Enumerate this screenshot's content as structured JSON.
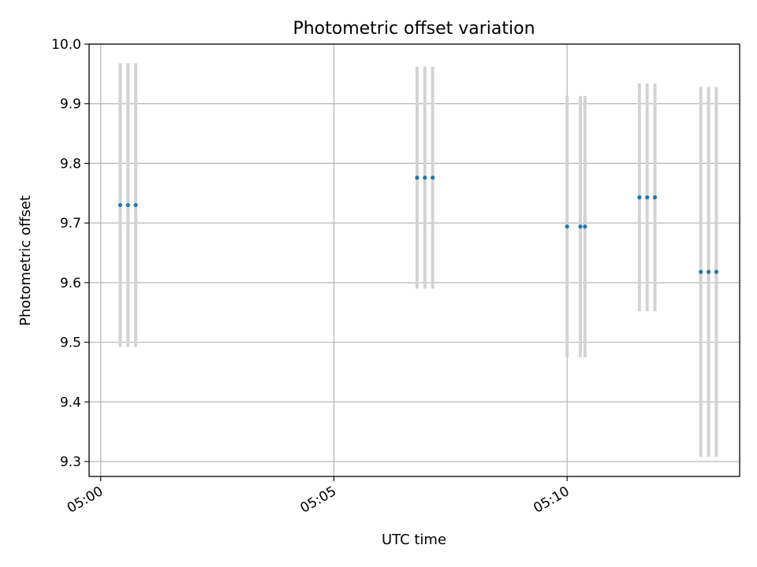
{
  "chart_data": {
    "type": "scatter",
    "title": "Photometric offset variation",
    "xlabel": "UTC time",
    "ylabel": "Photometric offset",
    "xlim": [
      "04:59:45",
      "05:13:42"
    ],
    "ylim": [
      9.275,
      10.0
    ],
    "yticks": [
      9.3,
      9.4,
      9.5,
      9.6,
      9.7,
      9.8,
      9.9,
      10.0
    ],
    "xticks": [
      "05:00",
      "05:05",
      "05:10"
    ],
    "grid": true,
    "colors": {
      "points": "#1f77b4",
      "errorbars": "#d3d3d3",
      "grid": "#b0b0b0"
    },
    "points": [
      {
        "t": "05:00:25",
        "y": 9.73,
        "lo": 9.492,
        "hi": 9.968
      },
      {
        "t": "05:00:35",
        "y": 9.73,
        "lo": 9.492,
        "hi": 9.968
      },
      {
        "t": "05:00:45",
        "y": 9.73,
        "lo": 9.492,
        "hi": 9.968
      },
      {
        "t": "05:06:47",
        "y": 9.776,
        "lo": 9.59,
        "hi": 9.962
      },
      {
        "t": "05:06:57",
        "y": 9.776,
        "lo": 9.59,
        "hi": 9.962
      },
      {
        "t": "05:07:07",
        "y": 9.776,
        "lo": 9.59,
        "hi": 9.962
      },
      {
        "t": "05:10:00",
        "y": 9.694,
        "lo": 9.475,
        "hi": 9.913
      },
      {
        "t": "05:10:17",
        "y": 9.694,
        "lo": 9.475,
        "hi": 9.913
      },
      {
        "t": "05:10:23",
        "y": 9.694,
        "lo": 9.475,
        "hi": 9.913
      },
      {
        "t": "05:11:33",
        "y": 9.743,
        "lo": 9.552,
        "hi": 9.934
      },
      {
        "t": "05:11:43",
        "y": 9.743,
        "lo": 9.552,
        "hi": 9.934
      },
      {
        "t": "05:11:53",
        "y": 9.743,
        "lo": 9.552,
        "hi": 9.934
      },
      {
        "t": "05:12:52",
        "y": 9.618,
        "lo": 9.308,
        "hi": 9.928
      },
      {
        "t": "05:13:02",
        "y": 9.618,
        "lo": 9.308,
        "hi": 9.928
      },
      {
        "t": "05:13:12",
        "y": 9.618,
        "lo": 9.308,
        "hi": 9.928
      }
    ]
  }
}
